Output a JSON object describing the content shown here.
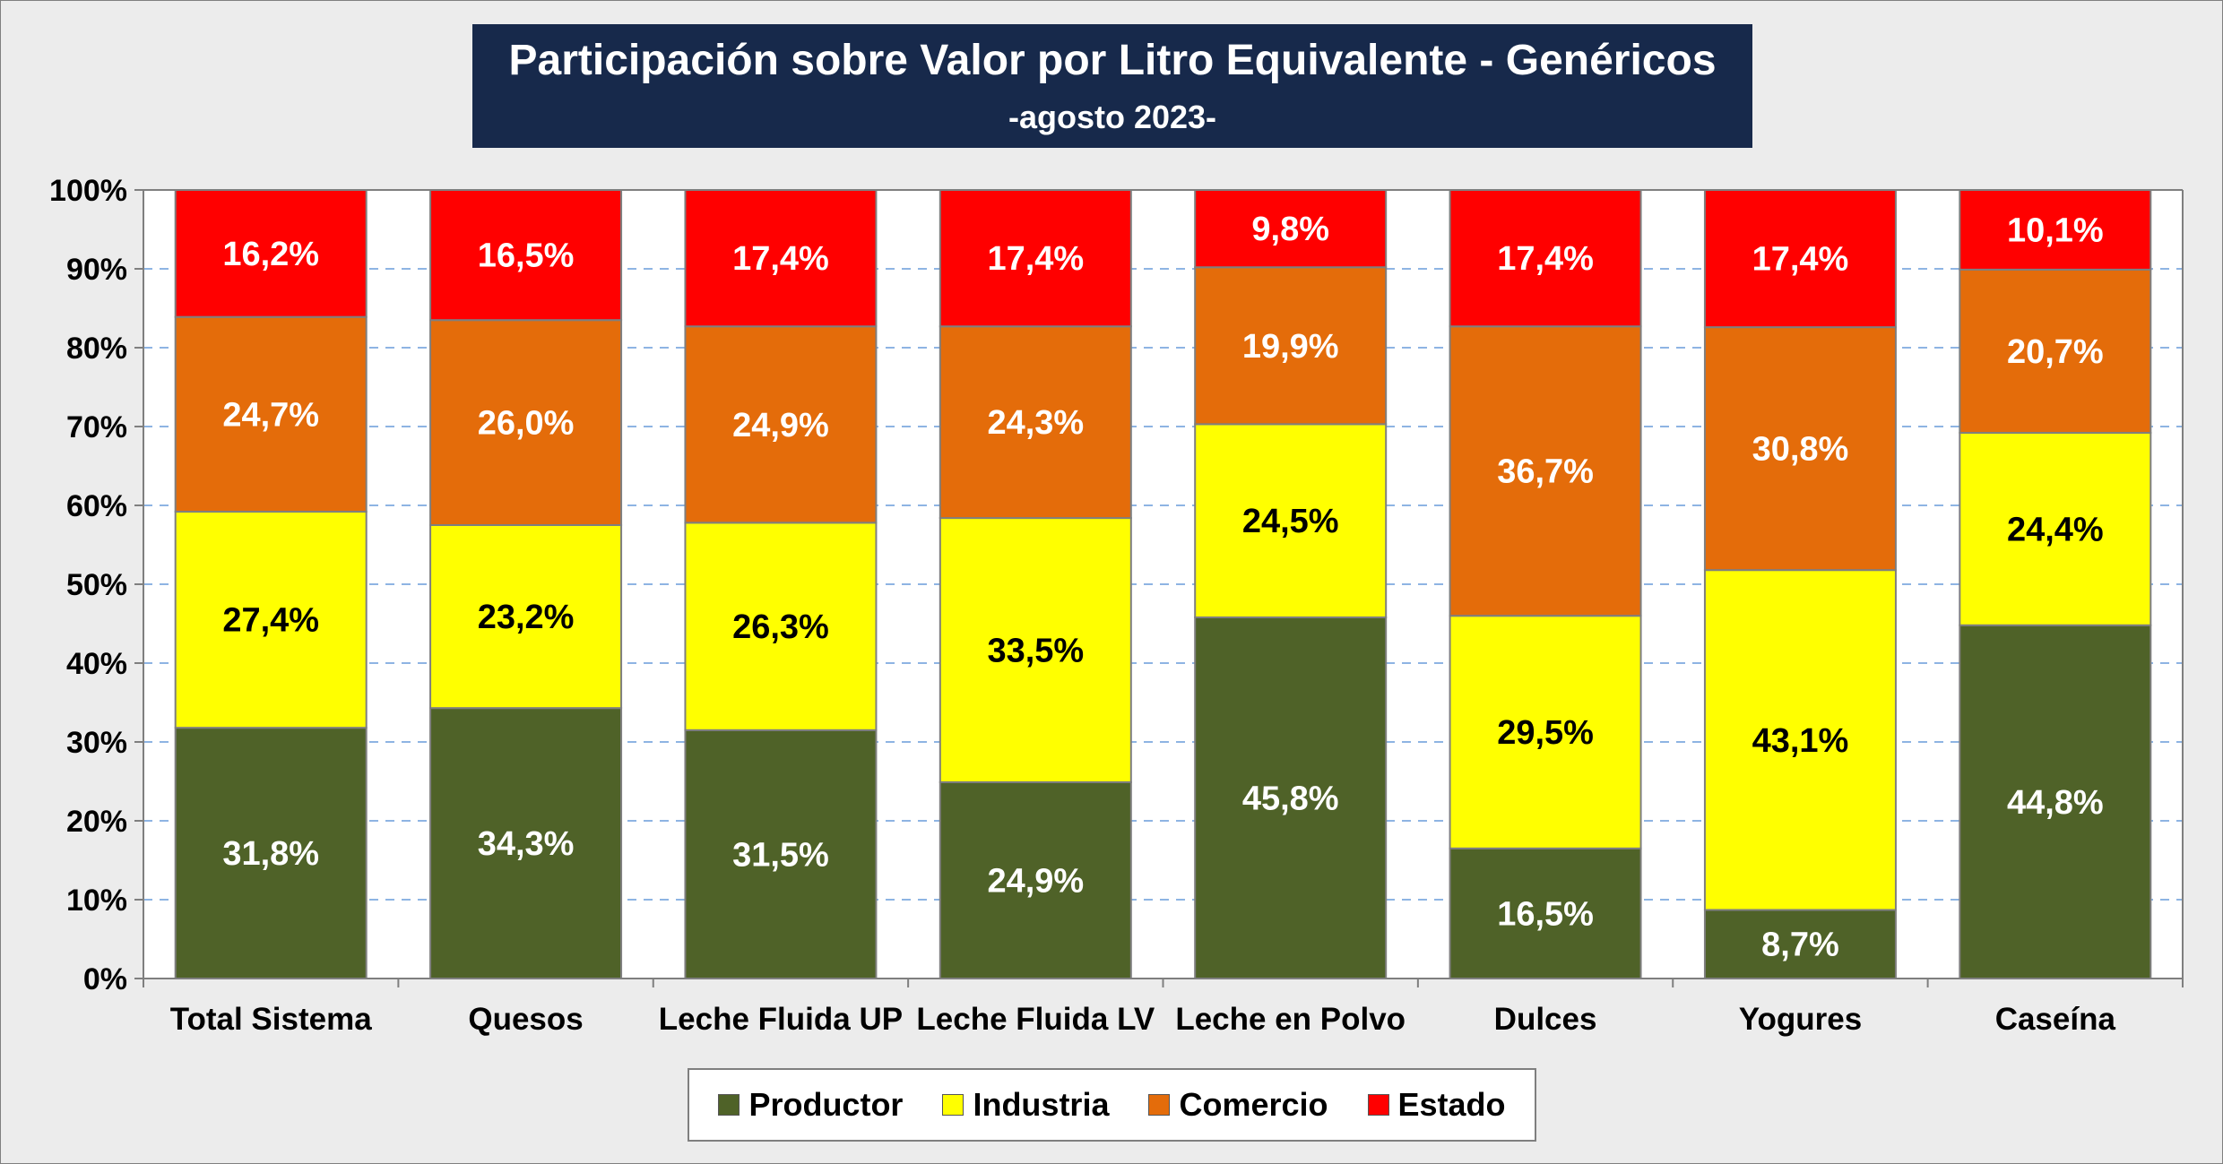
{
  "chart_data": {
    "type": "bar",
    "stacked": true,
    "title": "Participación sobre Valor por Litro Equivalente - Genéricos",
    "subtitle": "-agosto 2023-",
    "categories": [
      "Total Sistema",
      "Quesos",
      "Leche Fluida UP",
      "Leche Fluida LV",
      "Leche en Polvo",
      "Dulces",
      "Yogures",
      "Caseína"
    ],
    "series": [
      {
        "name": "Productor",
        "color": "#4f6228",
        "label_color": "#ffffff",
        "values": [
          31.8,
          34.3,
          31.5,
          24.9,
          45.8,
          16.5,
          8.7,
          44.8
        ],
        "labels": [
          "31,8%",
          "34,3%",
          "31,5%",
          "24,9%",
          "45,8%",
          "16,5%",
          "8,7%",
          "44,8%"
        ]
      },
      {
        "name": "Industria",
        "color": "#ffff00",
        "label_color": "#000000",
        "values": [
          27.4,
          23.2,
          26.3,
          33.5,
          24.5,
          29.5,
          43.1,
          24.4
        ],
        "labels": [
          "27,4%",
          "23,2%",
          "26,3%",
          "33,5%",
          "24,5%",
          "29,5%",
          "43,1%",
          "24,4%"
        ]
      },
      {
        "name": "Comercio",
        "color": "#e46c0a",
        "label_color": "#ffffff",
        "values": [
          24.7,
          26.0,
          24.9,
          24.3,
          19.9,
          36.7,
          30.8,
          20.7
        ],
        "labels": [
          "24,7%",
          "26,0%",
          "24,9%",
          "24,3%",
          "19,9%",
          "36,7%",
          "30,8%",
          "20,7%"
        ]
      },
      {
        "name": "Estado",
        "color": "#ff0000",
        "label_color": "#ffffff",
        "values": [
          16.2,
          16.5,
          17.4,
          17.4,
          9.8,
          17.4,
          17.4,
          10.1
        ],
        "labels": [
          "16,2%",
          "16,5%",
          "17,4%",
          "17,4%",
          "9,8%",
          "17,4%",
          "17,4%",
          "10,1%"
        ]
      }
    ],
    "ylim": [
      0,
      100
    ],
    "yticks": [
      "0%",
      "10%",
      "20%",
      "30%",
      "40%",
      "50%",
      "60%",
      "70%",
      "80%",
      "90%",
      "100%"
    ],
    "grid": true,
    "legend_position": "bottom"
  }
}
